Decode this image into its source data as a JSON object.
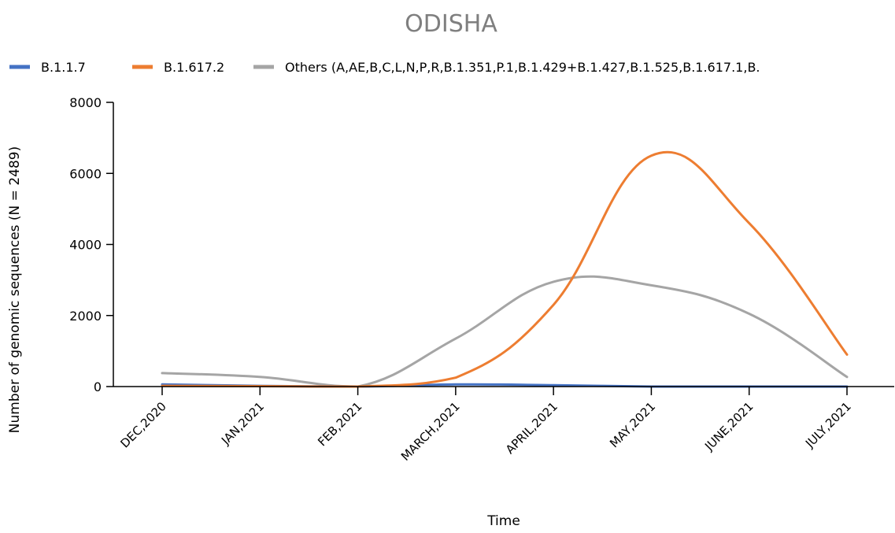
{
  "chart_data": {
    "type": "line",
    "title": "ODISHA",
    "xlabel": "Time",
    "ylabel": "Number of genomic sequences (N = 2489)",
    "categories": [
      "DEC,2020",
      "JAN,2021",
      "FEB,2021",
      "MARCH,2021",
      "APRIL,2021",
      "MAY,2021",
      "JUNE,2021",
      "JULY,2021"
    ],
    "ylim": [
      0,
      8000
    ],
    "yticks": [
      0,
      2000,
      4000,
      6000,
      8000
    ],
    "smooth": true,
    "grid": false,
    "legend_position": "top",
    "series": [
      {
        "name": "B.1.1.7",
        "color": "#4472c4",
        "values": [
          60,
          20,
          0,
          60,
          40,
          0,
          0,
          0
        ]
      },
      {
        "name": "B.1.617.2",
        "color": "#ed7d31",
        "values": [
          20,
          10,
          0,
          250,
          2300,
          6500,
          4600,
          900
        ]
      },
      {
        "name": "Others (A,AE,B,C,L,N,P,R,B.1.351,P.1,B.1.429+B.1.427,B.1.525,B.1.617.1,B.",
        "color": "#a5a5a5",
        "values": [
          380,
          270,
          0,
          1350,
          2950,
          2850,
          2050,
          270
        ]
      }
    ]
  }
}
